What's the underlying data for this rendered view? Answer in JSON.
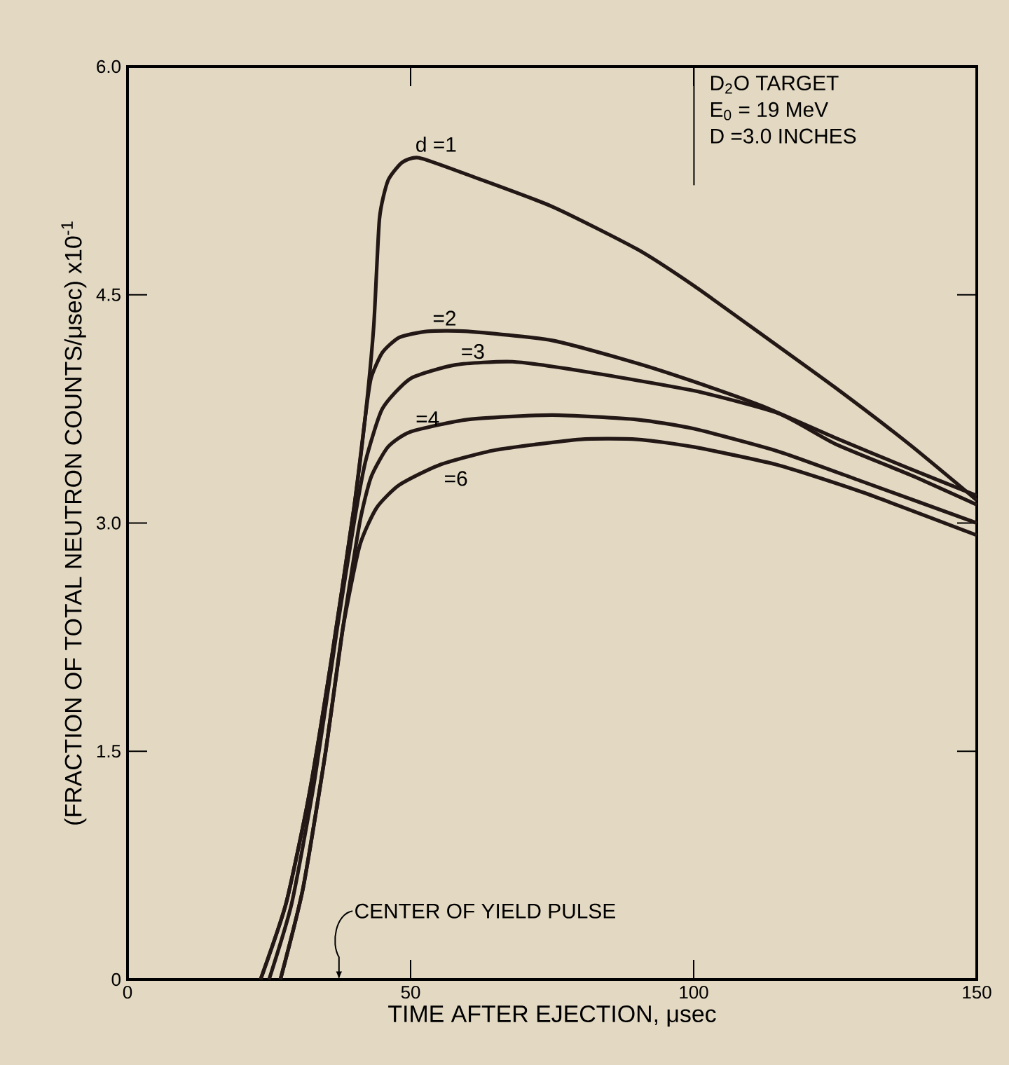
{
  "chart_data": {
    "type": "line",
    "xlabel": "TIME AFTER EJECTION,  μsec",
    "ylabel": "(FRACTION OF TOTAL NEUTRON COUNTS/μsec) x10$^{-1}$",
    "xlim": [
      0,
      150
    ],
    "ylim": [
      0,
      6
    ],
    "xticks": [
      0,
      50,
      100,
      150
    ],
    "yticks": [
      0,
      {
        "value": 1.5,
        "label": "1.5"
      },
      {
        "value": 3,
        "label": "3.0"
      },
      {
        "value": 4.5,
        "label": "4.5"
      },
      {
        "value": 6,
        "label": "6.0"
      }
    ],
    "annotations": [
      "D$_{2}$O  TARGET",
      "E$_{0}$ = 19 MeV",
      "D =3.0 INCHES",
      "CENTER OF YIELD PULSE"
    ],
    "series": [
      {
        "name": "d =1",
        "color": "#231815",
        "x": [
          23.5,
          28,
          32,
          36,
          40,
          42,
          43.5,
          44.5,
          46,
          48.5,
          51.5,
          60,
          75,
          90,
          100,
          112,
          125,
          138,
          150
        ],
        "values": [
          0,
          0.5,
          1.2,
          2.1,
          3.1,
          3.7,
          4.3,
          5.0,
          5.25,
          5.37,
          5.4,
          5.29,
          5.08,
          4.8,
          4.56,
          4.24,
          3.89,
          3.52,
          3.15
        ]
      },
      {
        "name": "=2",
        "color": "#231815",
        "x": [
          23.5,
          28,
          32,
          36,
          40,
          42,
          43,
          45,
          48,
          53,
          60,
          75,
          90,
          100,
          112,
          125,
          138,
          150
        ],
        "values": [
          0,
          0.5,
          1.2,
          2.1,
          3.1,
          3.7,
          3.95,
          4.12,
          4.22,
          4.26,
          4.26,
          4.2,
          4.05,
          3.93,
          3.77,
          3.56,
          3.36,
          3.18
        ]
      },
      {
        "name": "=3",
        "color": "#231815",
        "x": [
          25,
          29,
          33,
          37,
          40,
          42,
          45,
          50,
          58,
          68,
          80,
          100,
          115,
          125,
          138,
          150
        ],
        "values": [
          0,
          0.5,
          1.3,
          2.3,
          3.0,
          3.4,
          3.75,
          3.95,
          4.04,
          4.06,
          4.0,
          3.87,
          3.72,
          3.52,
          3.32,
          3.12
        ]
      },
      {
        "name": "=4",
        "color": "#231815",
        "x": [
          27,
          31,
          35,
          38,
          41,
          43,
          46,
          50,
          60,
          75,
          90,
          100,
          115,
          130,
          150
        ],
        "values": [
          0,
          0.6,
          1.5,
          2.3,
          3.0,
          3.3,
          3.5,
          3.6,
          3.68,
          3.71,
          3.68,
          3.62,
          3.47,
          3.27,
          3.0
        ]
      },
      {
        "name": "=6",
        "color": "#231815",
        "x": [
          27,
          31,
          35,
          38,
          41,
          44,
          48,
          55,
          65,
          80,
          90,
          100,
          115,
          130,
          150
        ],
        "values": [
          0,
          0.6,
          1.5,
          2.3,
          2.85,
          3.1,
          3.25,
          3.38,
          3.48,
          3.55,
          3.55,
          3.5,
          3.38,
          3.2,
          2.92
        ]
      }
    ]
  }
}
